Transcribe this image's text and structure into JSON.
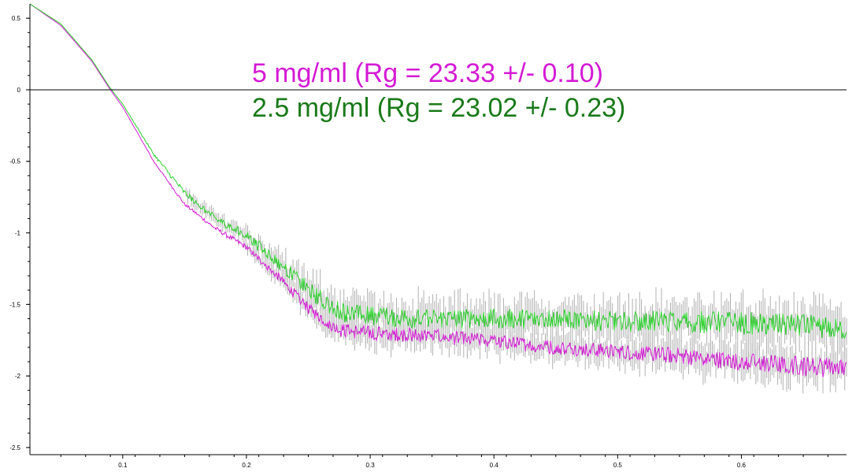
{
  "chart_data": {
    "type": "line",
    "title": "",
    "xlabel": "",
    "ylabel": "",
    "xlim": [
      0.025,
      0.685
    ],
    "ylim": [
      -2.55,
      0.6
    ],
    "x_ticks": [
      0.1,
      0.2,
      0.3,
      0.4,
      0.5,
      0.6
    ],
    "x_tick_labels": [
      "0.1",
      "0.2",
      "0.3",
      "0.4",
      "0.5",
      "0.6"
    ],
    "y_ticks": [
      0.5,
      0,
      -0.5,
      -1,
      -1.5,
      -2,
      -2.5
    ],
    "y_tick_labels": [
      "0.5",
      "0",
      "-0.5",
      "-1",
      "-1.5",
      "-2",
      "-2.5"
    ],
    "zero_line": true,
    "grid": false,
    "error_bars": true,
    "error_bar_color": "#b0b0b0",
    "legend_position": "top-center",
    "series": [
      {
        "name": "5 mg/ml (Rg = 23.33 +/- 0.10)",
        "color": "#d41ad4",
        "x": [
          0.025,
          0.05,
          0.075,
          0.09,
          0.1,
          0.125,
          0.15,
          0.175,
          0.2,
          0.225,
          0.25,
          0.275,
          0.3,
          0.35,
          0.4,
          0.45,
          0.5,
          0.55,
          0.6,
          0.65,
          0.685
        ],
        "y": [
          0.6,
          0.45,
          0.2,
          0.0,
          -0.12,
          -0.5,
          -0.8,
          -0.97,
          -1.1,
          -1.3,
          -1.53,
          -1.68,
          -1.7,
          -1.72,
          -1.76,
          -1.8,
          -1.83,
          -1.86,
          -1.9,
          -1.93,
          -1.95
        ],
        "noise": [
          0,
          0,
          0,
          0,
          0,
          0.005,
          0.01,
          0.015,
          0.02,
          0.03,
          0.04,
          0.05,
          0.05,
          0.05,
          0.05,
          0.05,
          0.05,
          0.06,
          0.06,
          0.07,
          0.07
        ]
      },
      {
        "name": "2.5 mg/ml (Rg = 23.02 +/- 0.23)",
        "color": "#1a7a1a",
        "line_color": "#2ed12e",
        "x": [
          0.025,
          0.05,
          0.075,
          0.09,
          0.1,
          0.125,
          0.15,
          0.175,
          0.2,
          0.225,
          0.25,
          0.275,
          0.3,
          0.35,
          0.4,
          0.45,
          0.5,
          0.55,
          0.6,
          0.65,
          0.685
        ],
        "y": [
          0.6,
          0.46,
          0.21,
          0.01,
          -0.1,
          -0.45,
          -0.72,
          -0.9,
          -1.02,
          -1.2,
          -1.4,
          -1.55,
          -1.58,
          -1.6,
          -1.6,
          -1.6,
          -1.62,
          -1.62,
          -1.63,
          -1.65,
          -1.67
        ],
        "noise": [
          0,
          0,
          0,
          0,
          0,
          0.01,
          0.02,
          0.025,
          0.035,
          0.045,
          0.06,
          0.07,
          0.07,
          0.07,
          0.07,
          0.07,
          0.07,
          0.08,
          0.08,
          0.08,
          0.08
        ]
      }
    ]
  }
}
